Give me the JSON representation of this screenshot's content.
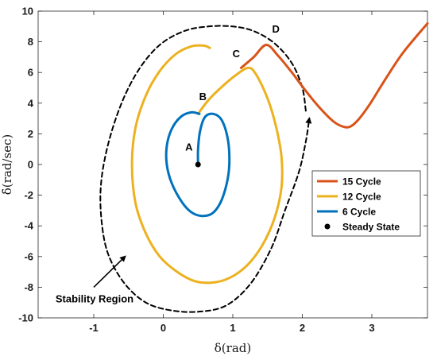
{
  "chart_data": {
    "type": "line",
    "xlabel": "δ(rad)",
    "ylabel": "δ̇(rad/sec)",
    "xlim": [
      -1.8,
      3.8
    ],
    "ylim": [
      -10,
      10
    ],
    "x_ticks": [
      -1,
      0,
      1,
      2,
      3
    ],
    "y_ticks": [
      -10,
      -8,
      -6,
      -4,
      -2,
      0,
      2,
      4,
      6,
      8,
      10
    ],
    "x_tick_labels": [
      "-1",
      "0",
      "1",
      "2",
      "3"
    ],
    "y_tick_labels": [
      "-10",
      "-8",
      "-6",
      "-4",
      "-2",
      "0",
      "2",
      "4",
      "6",
      "8",
      "10"
    ],
    "grid": false,
    "legend_position": "right",
    "legend": [
      {
        "label": "15 Cycle",
        "color": "#D95319",
        "kind": "line"
      },
      {
        "label": "12 Cycle",
        "color": "#EDB120",
        "kind": "line"
      },
      {
        "label": "6 Cycle",
        "color": "#0072BD",
        "kind": "line"
      },
      {
        "label": "Steady State",
        "color": "#000000",
        "kind": "marker"
      }
    ],
    "series": [
      {
        "name": "6 Cycle",
        "color": "#0072BD",
        "x": [
          0.5,
          0.5,
          0.53,
          0.6,
          0.72,
          0.84,
          0.93,
          0.95,
          0.91,
          0.82,
          0.7,
          0.55,
          0.4,
          0.26,
          0.12,
          0.05,
          0.05,
          0.12,
          0.25,
          0.4,
          0.52
        ],
        "y": [
          0,
          1.0,
          2.2,
          3.1,
          3.3,
          2.9,
          1.6,
          0.0,
          -1.3,
          -2.5,
          -3.2,
          -3.35,
          -3.1,
          -2.4,
          -1.2,
          0.0,
          1.2,
          2.3,
          3.1,
          3.4,
          3.3
        ]
      },
      {
        "name": "12 Cycle",
        "color": "#EDB120",
        "x": [
          0.5,
          0.65,
          0.85,
          1.05,
          1.22,
          1.33,
          1.5,
          1.62,
          1.7,
          1.7,
          1.6,
          1.42,
          1.2,
          0.95,
          0.7,
          0.45,
          0.2,
          -0.05,
          -0.25,
          -0.4,
          -0.45,
          -0.4,
          -0.25,
          -0.05,
          0.18,
          0.4,
          0.58,
          0.67
        ],
        "y": [
          3.3,
          4.2,
          5.1,
          5.85,
          6.3,
          5.9,
          4.3,
          2.5,
          0.5,
          -1.5,
          -3.5,
          -5.3,
          -6.6,
          -7.4,
          -7.7,
          -7.6,
          -7.0,
          -6.0,
          -4.5,
          -2.5,
          0.0,
          2.4,
          4.5,
          6.1,
          7.2,
          7.7,
          7.75,
          7.6
        ]
      },
      {
        "name": "15 Cycle",
        "color": "#D95319",
        "x": [
          1.12,
          1.3,
          1.48,
          1.65,
          1.85,
          2.05,
          2.25,
          2.45,
          2.6,
          2.7,
          2.82,
          2.98,
          3.2,
          3.45,
          3.8
        ],
        "y": [
          6.3,
          7.0,
          7.8,
          7.1,
          6.0,
          4.8,
          3.7,
          2.8,
          2.45,
          2.5,
          3.0,
          4.0,
          5.6,
          7.3,
          9.2
        ]
      },
      {
        "name": "Stability Region",
        "color": "#000000",
        "dashed": true,
        "x": [
          2.05,
          2.0,
          1.85,
          1.6,
          1.3,
          1.0,
          0.65,
          0.3,
          -0.05,
          -0.35,
          -0.6,
          -0.8,
          -0.9,
          -0.88,
          -0.78,
          -0.55,
          -0.25,
          0.1,
          0.5,
          0.9,
          1.25,
          1.55,
          1.75,
          1.95,
          2.05,
          2.1
        ],
        "y": [
          3.5,
          5.0,
          6.6,
          7.9,
          8.7,
          9.0,
          9.0,
          8.7,
          7.8,
          6.2,
          4.0,
          1.2,
          -1.5,
          -4.0,
          -6.0,
          -7.8,
          -9.0,
          -9.5,
          -9.6,
          -9.2,
          -7.8,
          -5.5,
          -3.0,
          -0.5,
          1.5,
          3.0
        ]
      }
    ],
    "markers": [
      {
        "name": "Steady State",
        "x": 0.5,
        "y": 0,
        "color": "#000000"
      }
    ],
    "annotations": [
      {
        "label": "A",
        "x": 0.37,
        "y": 0.9
      },
      {
        "label": "B",
        "x": 0.57,
        "y": 4.2
      },
      {
        "label": "C",
        "x": 1.05,
        "y": 7.0
      },
      {
        "label": "D",
        "x": 1.62,
        "y": 8.6
      },
      {
        "label": "Stability Region",
        "x": -1.55,
        "y": -9.0
      }
    ],
    "arrow_annotation": {
      "from": [
        -1.0,
        -8.0
      ],
      "to": [
        -0.55,
        -6.0
      ]
    }
  }
}
